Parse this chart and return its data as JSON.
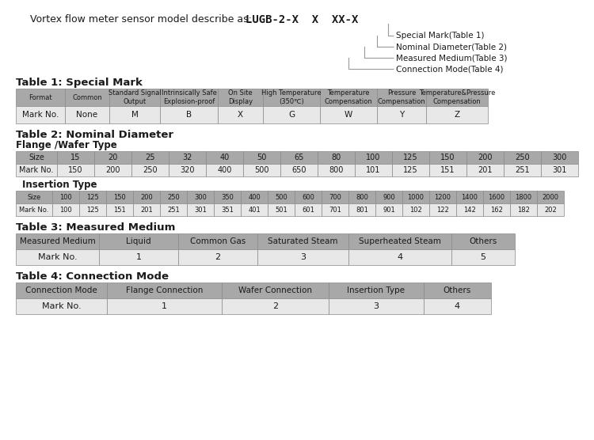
{
  "title_text": "Vortex flow meter sensor model describe as:",
  "model_code": "LUGB-2-X  X  XX-X",
  "diagram_labels": [
    "Special Mark(Table 1)",
    "Nominal Diameter(Table 2)",
    "Measured Medium(Table 3)",
    "Connection Mode(Table 4)"
  ],
  "table1_title": "Table 1: Special Mark",
  "table1_header": [
    "Format",
    "Common",
    "Standard Signal\nOutput",
    "Intrinsically Safe\nExplosion-proof",
    "On Site\nDisplay",
    "High Temperature\n(350℃)",
    "Temperature\nCompensation",
    "Pressure\nCompensation",
    "Temperature&Pressure\nCompensation"
  ],
  "table1_row": [
    "Mark No.",
    "None",
    "M",
    "B",
    "X",
    "G",
    "W",
    "Y",
    "Z"
  ],
  "table2_title": "Table 2: Nominal Diameter",
  "table2_subtitle": "Flange /Wafer Type",
  "table2_flange_header": [
    "Size",
    "15",
    "20",
    "25",
    "32",
    "40",
    "50",
    "65",
    "80",
    "100",
    "125",
    "150",
    "200",
    "250",
    "300"
  ],
  "table2_flange_row": [
    "Mark No.",
    "150",
    "200",
    "250",
    "320",
    "400",
    "500",
    "650",
    "800",
    "101",
    "125",
    "151",
    "201",
    "251",
    "301"
  ],
  "table2_insertion_subtitle": "Insertion Type",
  "table2_insertion_header": [
    "Size",
    "100",
    "125",
    "150",
    "200",
    "250",
    "300",
    "350",
    "400",
    "500",
    "600",
    "700",
    "800",
    "900",
    "1000",
    "1200",
    "1400",
    "1600",
    "1800",
    "2000"
  ],
  "table2_insertion_row": [
    "Mark No.",
    "100",
    "125",
    "151",
    "201",
    "251",
    "301",
    "351",
    "401",
    "501",
    "601",
    "701",
    "801",
    "901",
    "102",
    "122",
    "142",
    "162",
    "182",
    "202"
  ],
  "table3_title": "Table 3: Measured Medium",
  "table3_header": [
    "Measured Medium",
    "Liquid",
    "Common Gas",
    "Saturated Steam",
    "Superheated Steam",
    "Others"
  ],
  "table3_row": [
    "Mark No.",
    "1",
    "2",
    "3",
    "4",
    "5"
  ],
  "table4_title": "Table 4: Connection Mode",
  "table4_header": [
    "Connection Mode",
    "Flange Connection",
    "Wafer Connection",
    "Insertion Type",
    "Others"
  ],
  "table4_row": [
    "Mark No.",
    "1",
    "2",
    "3",
    "4"
  ],
  "header_color": "#a8a8a8",
  "row_color": "#e8e8e8",
  "border_color": "#888888",
  "bg_color": "#ffffff",
  "text_color": "#1a1a1a",
  "header_text_color": "#1a1a1a"
}
